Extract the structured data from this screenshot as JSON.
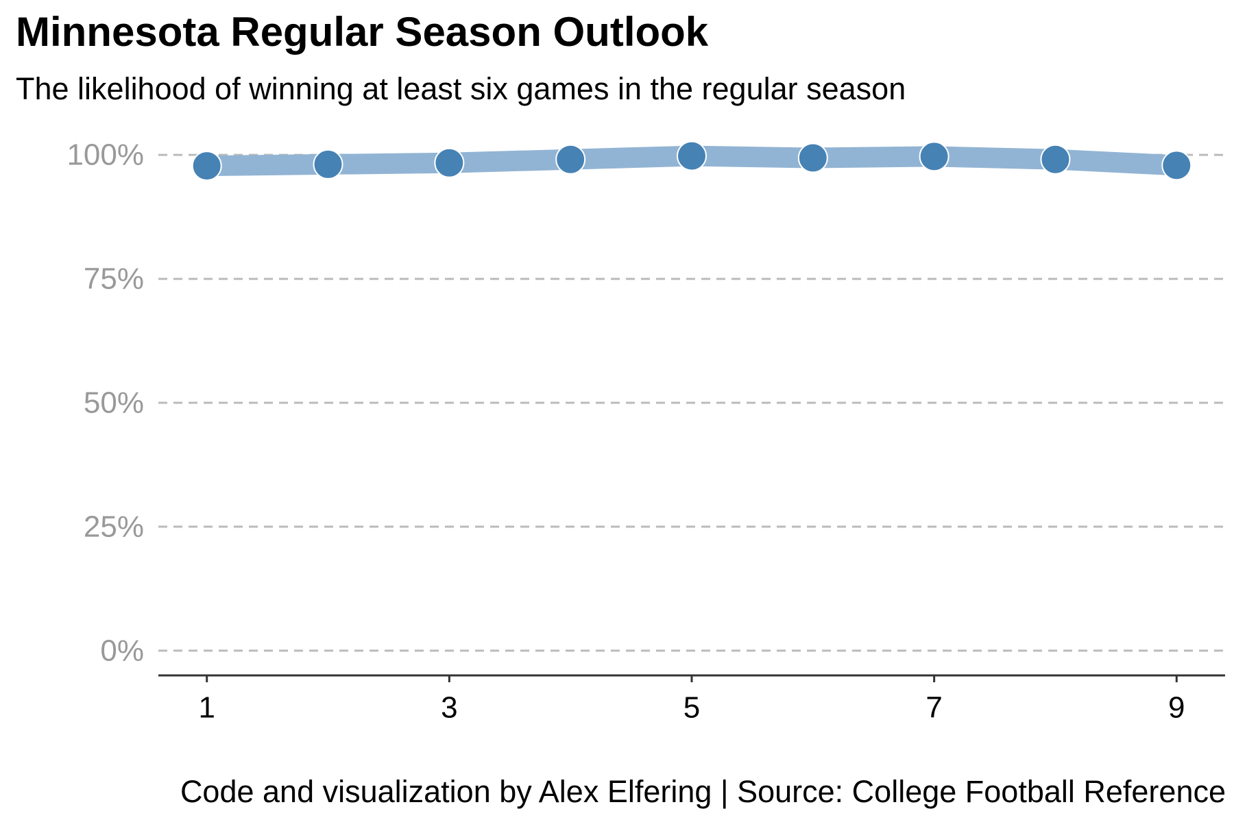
{
  "title": "Minnesota Regular Season Outlook",
  "subtitle": "The likelihood of winning at least six games in the regular season",
  "caption": "Code and visualization by Alex Elfering | Source: College Football Reference",
  "colors": {
    "line": "#92b4d4",
    "point": "#4682b4",
    "point_stroke": "#ffffff",
    "grid": "#bbbbbb",
    "axis": "#333333",
    "y_tick": "#999999",
    "x_tick": "#000000"
  },
  "chart_data": {
    "type": "line",
    "title": "Minnesota Regular Season Outlook",
    "subtitle": "The likelihood of winning at least six games in the regular season",
    "xlabel": "",
    "ylabel": "",
    "x": [
      1,
      2,
      3,
      4,
      5,
      6,
      7,
      8,
      9
    ],
    "series": [
      {
        "values": [
          97.8,
          98.1,
          98.4,
          99.1,
          99.8,
          99.4,
          99.7,
          99.1,
          97.9
        ]
      }
    ],
    "xlim": [
      0.6,
      9.4
    ],
    "ylim": [
      -5,
      105
    ],
    "x_ticks": [
      1,
      3,
      5,
      7,
      9
    ],
    "x_tick_labels": [
      "1",
      "3",
      "5",
      "7",
      "9"
    ],
    "y_ticks": [
      0,
      25,
      50,
      75,
      100
    ],
    "y_tick_labels": [
      "0%",
      "25%",
      "50%",
      "75%",
      "100%"
    ],
    "grid": "horizontal dashed",
    "legend": "none"
  }
}
